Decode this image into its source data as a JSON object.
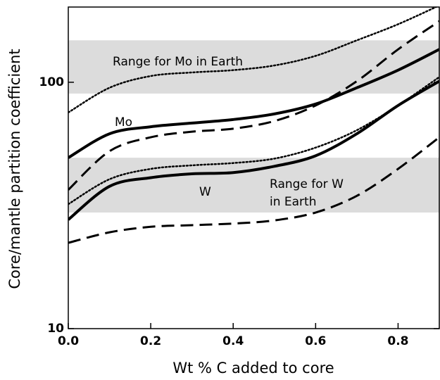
{
  "chart_data": {
    "type": "line",
    "xlabel": "Wt % C added to core",
    "ylabel": "Core/mantle partition coefficient",
    "xlim": [
      0,
      0.9
    ],
    "ylim": [
      10,
      202
    ],
    "log_y": true,
    "xticks": [
      {
        "value": 0,
        "label": "0.0"
      },
      0.2,
      0.4,
      0.6,
      0.8
    ],
    "yticks": [
      10,
      100
    ],
    "x": [
      0,
      0.1,
      0.2,
      0.3,
      0.4,
      0.5,
      0.6,
      0.7,
      0.8,
      0.9
    ],
    "bands": [
      {
        "from": 90,
        "to": 148,
        "color": "#dcdcdc"
      },
      {
        "from": 29.6,
        "to": 49.4,
        "color": "#dcdcdc"
      }
    ],
    "series": [
      {
        "color": "#000000",
        "dash": "solid",
        "values": [
          49.4,
          61.8,
          66,
          68.3,
          70.6,
          74.4,
          81.6,
          95,
          112,
          136
        ]
      },
      {
        "color": "#000000",
        "dash": "dashed",
        "values": [
          36.6,
          52.5,
          59.8,
          63,
          64.8,
          69.6,
          80.5,
          101,
          136,
          177
        ]
      },
      {
        "color": "#000000",
        "dash": "dotted",
        "values": [
          75.4,
          95,
          106,
          109.6,
          112,
          117,
          128,
          148,
          172,
          205
        ]
      },
      {
        "color": "#000000",
        "dash": "solid",
        "values": [
          27.7,
          37.8,
          41,
          42.5,
          43,
          45.6,
          50.3,
          61.8,
          80.5,
          101
        ]
      },
      {
        "color": "#000000",
        "dash": "dashed",
        "values": [
          22.3,
          24.6,
          25.9,
          26.3,
          26.7,
          27.5,
          29.6,
          34.6,
          44.5,
          59.8
        ]
      },
      {
        "color": "#000000",
        "dash": "dotted",
        "values": [
          32,
          40.4,
          44.5,
          46,
          47,
          49,
          54.3,
          63.9,
          80.5,
          105
        ]
      }
    ],
    "annotations": [
      "Range for Mo in Earth",
      "Mo",
      "W",
      "Range for W",
      "in Earth"
    ]
  }
}
